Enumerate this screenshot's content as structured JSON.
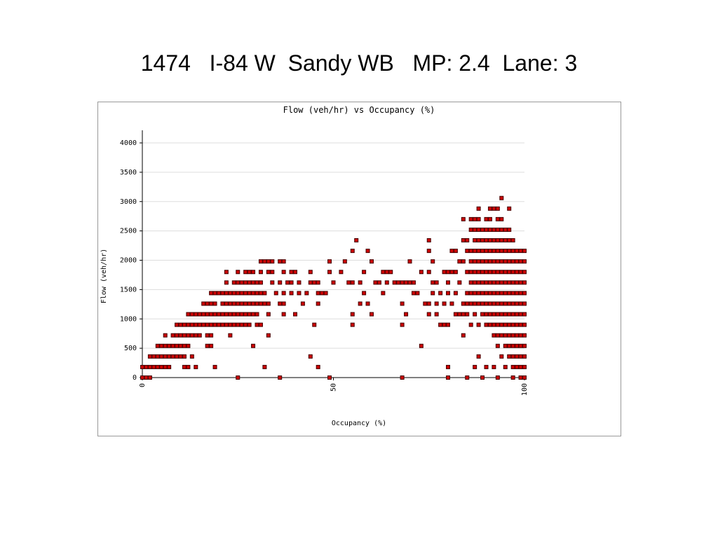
{
  "title": "1474   I-84 W  Sandy WB   MP: 2.4  Lane: 3",
  "chart_data": {
    "type": "scatter",
    "title": "Flow (veh/hr) vs Occupancy (%)",
    "x_label": "Occupancy (%)",
    "y_label": "Flow (veh/hr)",
    "color": "#cc0000",
    "grid": true,
    "xlim": [
      0,
      100
    ],
    "xticks": [
      0,
      50,
      100
    ],
    "ylim": [
      0,
      4000
    ],
    "yticks": [
      0,
      500,
      1000,
      1500,
      2000,
      2500,
      3000,
      3500,
      4000
    ],
    "x": [
      0,
      1,
      2,
      25,
      36,
      49,
      68,
      80,
      85,
      89,
      93,
      97,
      99,
      100,
      0,
      1,
      2,
      3,
      4,
      5,
      6,
      7,
      11,
      12,
      14,
      19,
      32,
      46,
      80,
      87,
      90,
      92,
      95,
      97,
      98,
      99,
      100,
      2,
      3,
      4,
      5,
      6,
      7,
      8,
      9,
      10,
      11,
      13,
      44,
      88,
      94,
      96,
      97,
      98,
      99,
      100,
      4,
      5,
      6,
      7,
      8,
      9,
      10,
      11,
      12,
      17,
      18,
      29,
      73,
      93,
      95,
      96,
      97,
      98,
      99,
      100,
      6,
      8,
      9,
      10,
      11,
      12,
      13,
      14,
      15,
      17,
      18,
      23,
      33,
      84,
      92,
      93,
      94,
      95,
      96,
      97,
      98,
      99,
      100,
      9,
      10,
      11,
      12,
      13,
      14,
      15,
      16,
      17,
      18,
      19,
      20,
      21,
      22,
      23,
      24,
      25,
      26,
      27,
      28,
      30,
      31,
      45,
      55,
      68,
      78,
      79,
      80,
      86,
      88,
      90,
      91,
      92,
      93,
      94,
      95,
      96,
      97,
      98,
      99,
      100,
      12,
      13,
      14,
      15,
      16,
      17,
      18,
      19,
      20,
      21,
      22,
      23,
      24,
      25,
      26,
      27,
      28,
      29,
      30,
      33,
      37,
      40,
      55,
      60,
      69,
      75,
      77,
      82,
      83,
      84,
      85,
      87,
      89,
      90,
      91,
      92,
      93,
      94,
      95,
      96,
      97,
      98,
      99,
      100,
      16,
      17,
      18,
      19,
      21,
      22,
      23,
      24,
      25,
      26,
      27,
      28,
      29,
      30,
      31,
      32,
      33,
      36,
      37,
      42,
      46,
      57,
      59,
      68,
      74,
      75,
      77,
      79,
      81,
      84,
      85,
      86,
      87,
      88,
      89,
      90,
      91,
      92,
      93,
      94,
      95,
      96,
      97,
      98,
      99,
      100,
      18,
      19,
      20,
      21,
      22,
      23,
      24,
      25,
      26,
      27,
      28,
      29,
      30,
      31,
      32,
      35,
      37,
      39,
      41,
      43,
      46,
      47,
      48,
      58,
      63,
      71,
      72,
      76,
      78,
      80,
      82,
      85,
      86,
      87,
      88,
      89,
      90,
      91,
      92,
      93,
      94,
      95,
      96,
      97,
      98,
      99,
      100,
      22,
      24,
      25,
      26,
      27,
      28,
      29,
      30,
      31,
      34,
      36,
      38,
      39,
      41,
      44,
      45,
      46,
      50,
      54,
      55,
      57,
      61,
      62,
      64,
      66,
      67,
      68,
      69,
      70,
      71,
      76,
      77,
      80,
      83,
      86,
      87,
      88,
      89,
      90,
      91,
      92,
      93,
      94,
      95,
      96,
      97,
      98,
      99,
      100,
      22,
      25,
      27,
      28,
      29,
      31,
      33,
      34,
      37,
      39,
      40,
      44,
      49,
      52,
      58,
      63,
      64,
      65,
      73,
      75,
      79,
      80,
      81,
      82,
      85,
      86,
      87,
      88,
      89,
      90,
      91,
      92,
      93,
      94,
      95,
      96,
      97,
      98,
      99,
      100,
      31,
      32,
      33,
      34,
      36,
      37,
      49,
      53,
      60,
      70,
      76,
      83,
      84,
      86,
      87,
      88,
      89,
      90,
      91,
      92,
      93,
      94,
      95,
      96,
      97,
      98,
      99,
      100,
      55,
      59,
      75,
      81,
      82,
      85,
      86,
      87,
      88,
      89,
      90,
      91,
      92,
      93,
      94,
      95,
      96,
      97,
      98,
      99,
      100,
      56,
      75,
      84,
      85,
      87,
      88,
      89,
      90,
      91,
      92,
      93,
      94,
      95,
      96,
      97,
      86,
      87,
      88,
      89,
      90,
      91,
      92,
      93,
      94,
      95,
      96,
      84,
      86,
      87,
      88,
      90,
      91,
      93,
      94,
      88,
      91,
      92,
      93,
      96,
      94
    ],
    "values": [
      0,
      0,
      0,
      0,
      0,
      0,
      0,
      0,
      0,
      0,
      0,
      0,
      0,
      0,
      180,
      180,
      180,
      180,
      180,
      180,
      180,
      180,
      180,
      180,
      180,
      180,
      180,
      180,
      180,
      180,
      180,
      180,
      180,
      180,
      180,
      180,
      180,
      360,
      360,
      360,
      360,
      360,
      360,
      360,
      360,
      360,
      360,
      360,
      360,
      360,
      360,
      360,
      360,
      360,
      360,
      360,
      540,
      540,
      540,
      540,
      540,
      540,
      540,
      540,
      540,
      540,
      540,
      540,
      540,
      540,
      540,
      540,
      540,
      540,
      540,
      540,
      720,
      720,
      720,
      720,
      720,
      720,
      720,
      720,
      720,
      720,
      720,
      720,
      720,
      720,
      720,
      720,
      720,
      720,
      720,
      720,
      720,
      720,
      720,
      900,
      900,
      900,
      900,
      900,
      900,
      900,
      900,
      900,
      900,
      900,
      900,
      900,
      900,
      900,
      900,
      900,
      900,
      900,
      900,
      900,
      900,
      900,
      900,
      900,
      900,
      900,
      900,
      900,
      900,
      900,
      900,
      900,
      900,
      900,
      900,
      900,
      900,
      900,
      900,
      900,
      1080,
      1080,
      1080,
      1080,
      1080,
      1080,
      1080,
      1080,
      1080,
      1080,
      1080,
      1080,
      1080,
      1080,
      1080,
      1080,
      1080,
      1080,
      1080,
      1080,
      1080,
      1080,
      1080,
      1080,
      1080,
      1080,
      1080,
      1080,
      1080,
      1080,
      1080,
      1080,
      1080,
      1080,
      1080,
      1080,
      1080,
      1080,
      1080,
      1080,
      1080,
      1080,
      1080,
      1080,
      1260,
      1260,
      1260,
      1260,
      1260,
      1260,
      1260,
      1260,
      1260,
      1260,
      1260,
      1260,
      1260,
      1260,
      1260,
      1260,
      1260,
      1260,
      1260,
      1260,
      1260,
      1260,
      1260,
      1260,
      1260,
      1260,
      1260,
      1260,
      1260,
      1260,
      1260,
      1260,
      1260,
      1260,
      1260,
      1260,
      1260,
      1260,
      1260,
      1260,
      1260,
      1260,
      1260,
      1260,
      1260,
      1260,
      1440,
      1440,
      1440,
      1440,
      1440,
      1440,
      1440,
      1440,
      1440,
      1440,
      1440,
      1440,
      1440,
      1440,
      1440,
      1440,
      1440,
      1440,
      1440,
      1440,
      1440,
      1440,
      1440,
      1440,
      1440,
      1440,
      1440,
      1440,
      1440,
      1440,
      1440,
      1440,
      1440,
      1440,
      1440,
      1440,
      1440,
      1440,
      1440,
      1440,
      1440,
      1440,
      1440,
      1440,
      1440,
      1440,
      1440,
      1620,
      1620,
      1620,
      1620,
      1620,
      1620,
      1620,
      1620,
      1620,
      1620,
      1620,
      1620,
      1620,
      1620,
      1620,
      1620,
      1620,
      1620,
      1620,
      1620,
      1620,
      1620,
      1620,
      1620,
      1620,
      1620,
      1620,
      1620,
      1620,
      1620,
      1620,
      1620,
      1620,
      1620,
      1620,
      1620,
      1620,
      1620,
      1620,
      1620,
      1620,
      1620,
      1620,
      1620,
      1620,
      1620,
      1620,
      1620,
      1620,
      1800,
      1800,
      1800,
      1800,
      1800,
      1800,
      1800,
      1800,
      1800,
      1800,
      1800,
      1800,
      1800,
      1800,
      1800,
      1800,
      1800,
      1800,
      1800,
      1800,
      1800,
      1800,
      1800,
      1800,
      1800,
      1800,
      1800,
      1800,
      1800,
      1800,
      1800,
      1800,
      1800,
      1800,
      1800,
      1800,
      1800,
      1800,
      1800,
      1800,
      1980,
      1980,
      1980,
      1980,
      1980,
      1980,
      1980,
      1980,
      1980,
      1980,
      1980,
      1980,
      1980,
      1980,
      1980,
      1980,
      1980,
      1980,
      1980,
      1980,
      1980,
      1980,
      1980,
      1980,
      1980,
      1980,
      1980,
      1980,
      2160,
      2160,
      2160,
      2160,
      2160,
      2160,
      2160,
      2160,
      2160,
      2160,
      2160,
      2160,
      2160,
      2160,
      2160,
      2160,
      2160,
      2160,
      2160,
      2160,
      2160,
      2340,
      2340,
      2340,
      2340,
      2340,
      2340,
      2340,
      2340,
      2340,
      2340,
      2340,
      2340,
      2340,
      2340,
      2340,
      2520,
      2520,
      2520,
      2520,
      2520,
      2520,
      2520,
      2520,
      2520,
      2520,
      2520,
      2700,
      2700,
      2700,
      2700,
      2700,
      2700,
      2700,
      2700,
      2880,
      2880,
      2880,
      2880,
      2880,
      3060
    ]
  }
}
